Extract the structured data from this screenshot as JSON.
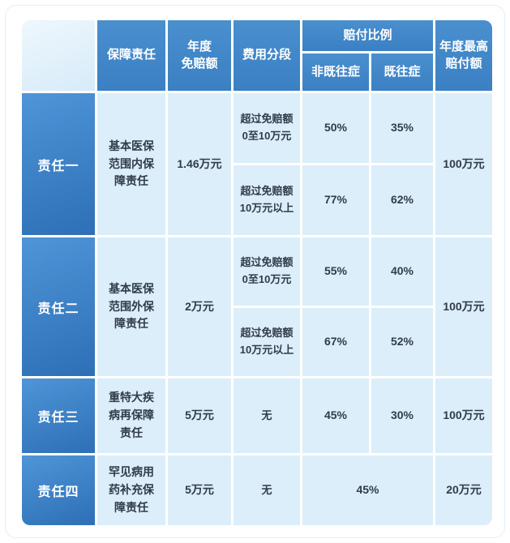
{
  "colors": {
    "header_blue": "#3e86c8",
    "row_label_blue_top": "#4f95d8",
    "row_label_blue_bottom": "#2e6fb5",
    "cell_light_blue": "#dceefa",
    "header_text": "#ffffff",
    "body_text": "#303c49"
  },
  "chart_data": {
    "type": "table",
    "header": {
      "coverage": "保障责任",
      "annual_deductible": "年度\n免赔额",
      "cost_segment": "费用分段",
      "payout_ratio": "赔付比例",
      "non_preexisting": "非既往症",
      "preexisting": "既往症",
      "annual_max_payout": "年度最高\n赔付额"
    },
    "groups": [
      {
        "label": "责任一",
        "coverage": "基本医保范围内保障责任",
        "deductible": "1.46万元",
        "segments": [
          {
            "range": "超过免赔额\n0至10万元",
            "non_preexisting": "50%",
            "preexisting": "35%"
          },
          {
            "range": "超过免赔额\n10万元以上",
            "non_preexisting": "77%",
            "preexisting": "62%"
          }
        ],
        "max_payout": "100万元"
      },
      {
        "label": "责任二",
        "coverage": "基本医保范围外保障责任",
        "deductible": "2万元",
        "segments": [
          {
            "range": "超过免赔额\n0至10万元",
            "non_preexisting": "55%",
            "preexisting": "40%"
          },
          {
            "range": "超过免赔额\n10万元以上",
            "non_preexisting": "67%",
            "preexisting": "52%"
          }
        ],
        "max_payout": "100万元"
      },
      {
        "label": "责任三",
        "coverage": "重特大疾病再保障责任",
        "deductible": "5万元",
        "segments": [
          {
            "range": "无",
            "non_preexisting": "45%",
            "preexisting": "30%"
          }
        ],
        "max_payout": "100万元"
      },
      {
        "label": "责任四",
        "coverage": "罕见病用药补充保障责任",
        "deductible": "5万元",
        "segments": [
          {
            "range": "无",
            "merged": "45%"
          }
        ],
        "max_payout": "20万元"
      }
    ]
  }
}
